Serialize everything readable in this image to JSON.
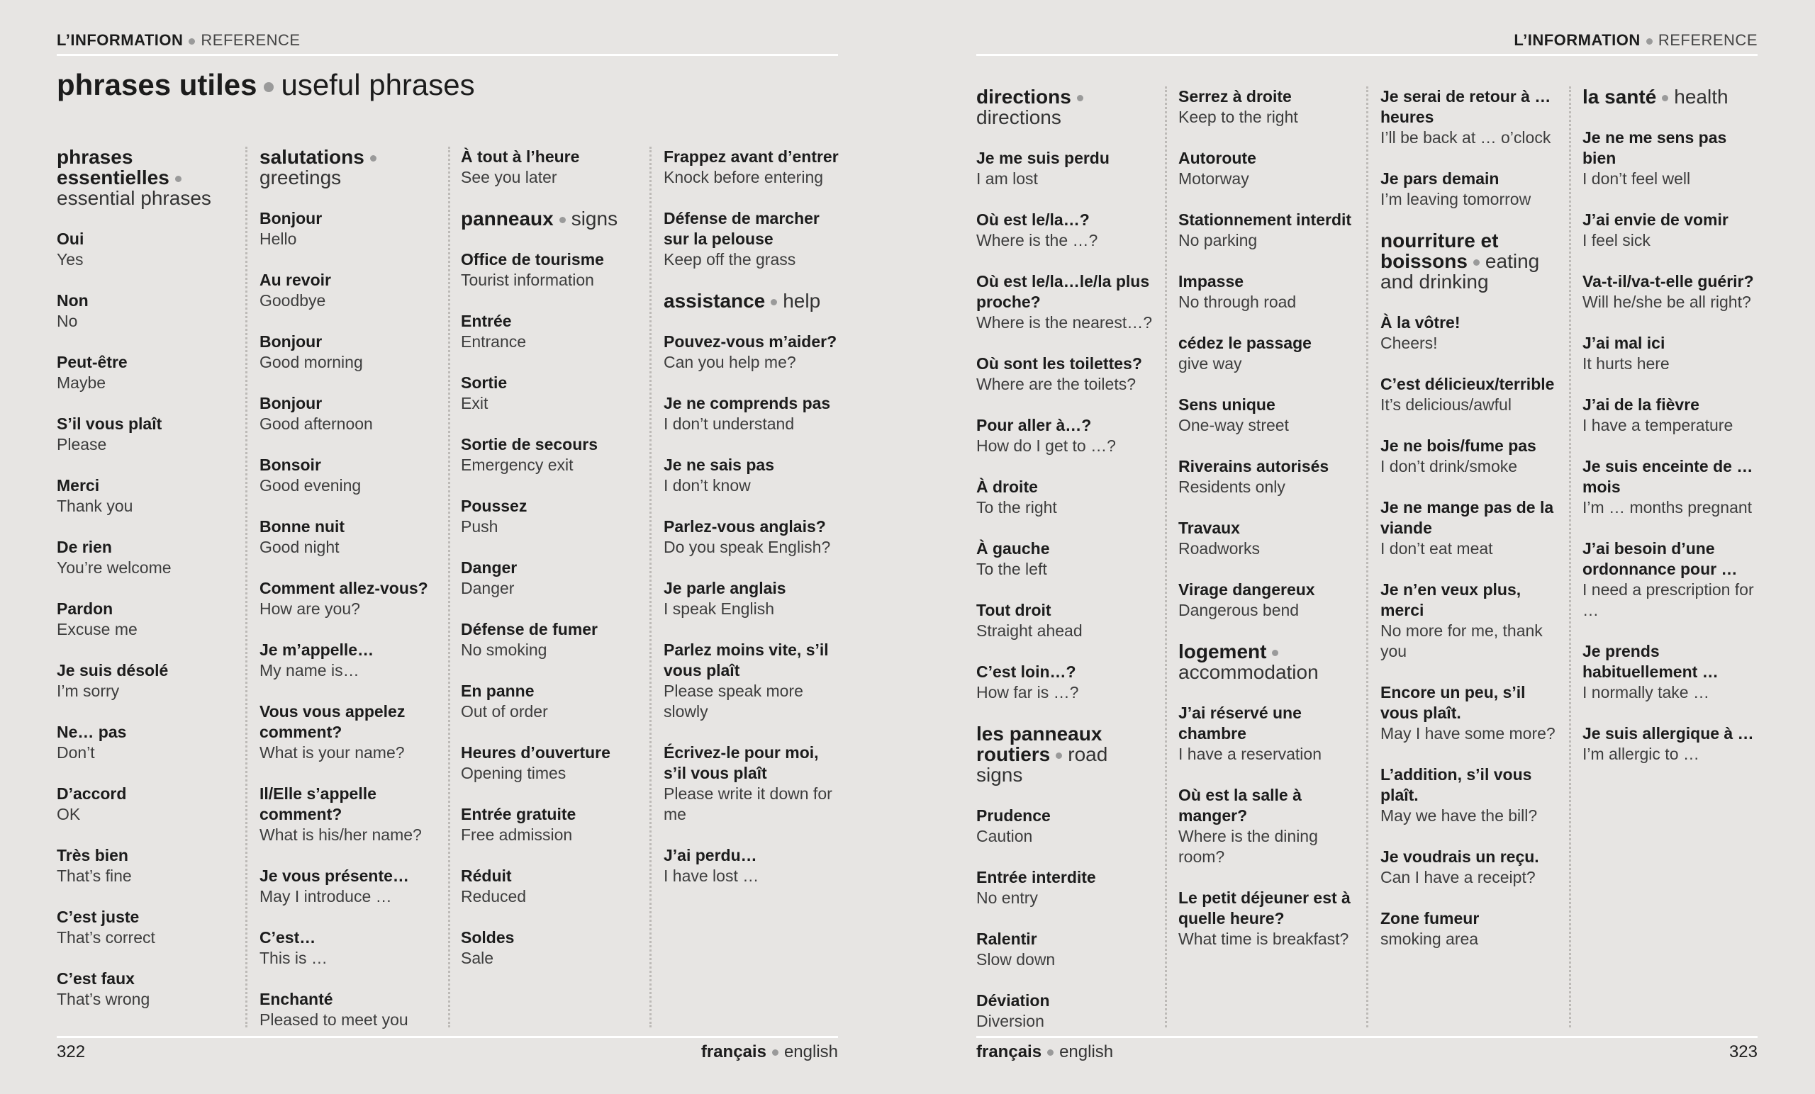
{
  "pages": [
    {
      "header": {
        "section": "L’INFORMATION",
        "subsection": "REFERENCE"
      },
      "title": {
        "french": "phrases utiles",
        "english": "useful phrases"
      },
      "columns": [
        [
          {
            "heading": "phrases essentielles",
            "heading_translation": "essential phrases"
          },
          {
            "phrase": "Oui",
            "translation": "Yes"
          },
          {
            "phrase": "Non",
            "translation": "No"
          },
          {
            "phrase": "Peut-être",
            "translation": "Maybe"
          },
          {
            "phrase": "S’il vous plaît",
            "translation": "Please"
          },
          {
            "phrase": "Merci",
            "translation": "Thank you"
          },
          {
            "phrase": "De rien",
            "translation": "You’re welcome"
          },
          {
            "phrase": "Pardon",
            "translation": "Excuse me"
          },
          {
            "phrase": "Je suis désolé",
            "translation": "I’m sorry"
          },
          {
            "phrase": "Ne… pas",
            "translation": "Don’t"
          },
          {
            "phrase": "D’accord",
            "translation": "OK"
          },
          {
            "phrase": "Très bien",
            "translation": "That’s fine"
          },
          {
            "phrase": "C’est juste",
            "translation": "That’s correct"
          },
          {
            "phrase": "C’est faux",
            "translation": "That’s wrong"
          }
        ],
        [
          {
            "heading": "salutations",
            "heading_translation": "greetings"
          },
          {
            "phrase": "Bonjour",
            "translation": "Hello"
          },
          {
            "phrase": "Au revoir",
            "translation": "Goodbye"
          },
          {
            "phrase": "Bonjour",
            "translation": "Good morning"
          },
          {
            "phrase": "Bonjour",
            "translation": "Good afternoon"
          },
          {
            "phrase": "Bonsoir",
            "translation": "Good evening"
          },
          {
            "phrase": "Bonne nuit",
            "translation": "Good night"
          },
          {
            "phrase": "Comment allez-vous?",
            "translation": "How are you?"
          },
          {
            "phrase": "Je m’appelle…",
            "translation": "My name is…"
          },
          {
            "phrase": "Vous vous appelez comment?",
            "translation": "What is your name?"
          },
          {
            "phrase": "Il/Elle s’appelle comment?",
            "translation": "What is his/her name?"
          },
          {
            "phrase": "Je vous présente…",
            "translation": "May I introduce …"
          },
          {
            "phrase": "C’est…",
            "translation": "This is …"
          },
          {
            "phrase": "Enchanté",
            "translation": "Pleased to meet you"
          }
        ],
        [
          {
            "phrase": "À tout à l’heure",
            "translation": "See you later"
          },
          {
            "heading": "panneaux",
            "heading_translation": "signs"
          },
          {
            "phrase": "Office de tourisme",
            "translation": "Tourist information"
          },
          {
            "phrase": "Entrée",
            "translation": "Entrance"
          },
          {
            "phrase": "Sortie",
            "translation": "Exit"
          },
          {
            "phrase": "Sortie de secours",
            "translation": "Emergency exit"
          },
          {
            "phrase": "Poussez",
            "translation": "Push"
          },
          {
            "phrase": "Danger",
            "translation": "Danger"
          },
          {
            "phrase": "Défense de fumer",
            "translation": "No smoking"
          },
          {
            "phrase": "En panne",
            "translation": "Out of order"
          },
          {
            "phrase": "Heures d’ouverture",
            "translation": "Opening times"
          },
          {
            "phrase": "Entrée gratuite",
            "translation": "Free admission"
          },
          {
            "phrase": "Réduit",
            "translation": "Reduced"
          },
          {
            "phrase": "Soldes",
            "translation": "Sale"
          }
        ],
        [
          {
            "phrase": "Frappez avant d’entrer",
            "translation": "Knock before entering"
          },
          {
            "phrase": "Défense de marcher sur la pelouse",
            "translation": "Keep off the grass"
          },
          {
            "heading": "assistance",
            "heading_translation": "help"
          },
          {
            "phrase": "Pouvez-vous m’aider?",
            "translation": "Can you help me?"
          },
          {
            "phrase": "Je ne comprends pas",
            "translation": "I don’t understand"
          },
          {
            "phrase": "Je ne sais pas",
            "translation": "I don’t know"
          },
          {
            "phrase": "Parlez-vous anglais?",
            "translation": "Do you speak English?"
          },
          {
            "phrase": "Je parle anglais",
            "translation": "I speak English"
          },
          {
            "phrase": "Parlez moins vite, s’il vous plaît",
            "translation": "Please speak more slowly"
          },
          {
            "phrase": "Écrivez-le pour moi, s’il vous plaît",
            "translation": "Please write it down for me"
          },
          {
            "phrase": "J’ai perdu…",
            "translation": "I have lost …"
          }
        ]
      ],
      "footer": {
        "page_number": "322",
        "french": "français",
        "english": "english"
      }
    },
    {
      "header": {
        "section": "L’INFORMATION",
        "subsection": "REFERENCE"
      },
      "columns": [
        [
          {
            "heading": "directions",
            "heading_translation": "directions"
          },
          {
            "phrase": "Je me suis perdu",
            "translation": "I am lost"
          },
          {
            "phrase": "Où est le/la…?",
            "translation": "Where is the …?"
          },
          {
            "phrase": "Où est le/la…le/la plus proche?",
            "translation": "Where is the nearest…?"
          },
          {
            "phrase": "Où sont les toilettes?",
            "translation": "Where are the toilets?"
          },
          {
            "phrase": "Pour aller à…?",
            "translation": "How do I get to …?"
          },
          {
            "phrase": "À droite",
            "translation": "To the right"
          },
          {
            "phrase": "À gauche",
            "translation": "To the left"
          },
          {
            "phrase": "Tout droit",
            "translation": "Straight ahead"
          },
          {
            "phrase": "C’est loin…?",
            "translation": "How far is …?"
          },
          {
            "heading": "les panneaux routiers",
            "heading_translation": "road signs"
          },
          {
            "phrase": "Prudence",
            "translation": "Caution"
          },
          {
            "phrase": "Entrée interdite",
            "translation": "No entry"
          },
          {
            "phrase": "Ralentir",
            "translation": "Slow down"
          },
          {
            "phrase": "Déviation",
            "translation": "Diversion"
          }
        ],
        [
          {
            "phrase": "Serrez à droite",
            "translation": "Keep to the right"
          },
          {
            "phrase": "Autoroute",
            "translation": "Motorway"
          },
          {
            "phrase": "Stationnement interdit",
            "translation": "No parking"
          },
          {
            "phrase": "Impasse",
            "translation": "No through road"
          },
          {
            "phrase": "cédez le passage",
            "translation": "give way"
          },
          {
            "phrase": "Sens unique",
            "translation": "One-way street"
          },
          {
            "phrase": "Riverains autorisés",
            "translation": "Residents only"
          },
          {
            "phrase": "Travaux",
            "translation": "Roadworks"
          },
          {
            "phrase": "Virage dangereux",
            "translation": "Dangerous bend"
          },
          {
            "heading": "logement",
            "heading_translation": "accommodation"
          },
          {
            "phrase": "J’ai réservé une chambre",
            "translation": "I have a reservation"
          },
          {
            "phrase": "Où est la salle à manger?",
            "translation": "Where is the dining room?"
          },
          {
            "phrase": "Le petit déjeuner est à quelle heure?",
            "translation": "What time is breakfast?"
          }
        ],
        [
          {
            "phrase": "Je serai de retour à … heures",
            "translation": "I’ll be back at … o’clock"
          },
          {
            "phrase": "Je pars demain",
            "translation": "I’m leaving tomorrow"
          },
          {
            "heading": "nourriture et boissons",
            "heading_translation": "eating and drinking"
          },
          {
            "phrase": "À la vôtre!",
            "translation": "Cheers!"
          },
          {
            "phrase": "C’est délicieux/terrible",
            "translation": "It’s delicious/awful"
          },
          {
            "phrase": "Je ne bois/fume pas",
            "translation": "I don’t drink/smoke"
          },
          {
            "phrase": "Je ne mange pas de la viande",
            "translation": "I don’t eat meat"
          },
          {
            "phrase": "Je n’en veux plus, merci",
            "translation": "No more for me, thank you"
          },
          {
            "phrase": "Encore un peu, s’il vous plaît.",
            "translation": "May I have some more?"
          },
          {
            "phrase": "L’addition, s’il vous plaît.",
            "translation": "May we have the bill?"
          },
          {
            "phrase": "Je voudrais un reçu.",
            "translation": "Can I have a receipt?"
          },
          {
            "phrase": "Zone fumeur",
            "translation": "smoking area"
          }
        ],
        [
          {
            "heading": "la santé",
            "heading_translation": "health"
          },
          {
            "phrase": "Je ne me sens pas bien",
            "translation": "I don’t feel well"
          },
          {
            "phrase": "J’ai envie de vomir",
            "translation": "I feel sick"
          },
          {
            "phrase": "Va-t-il/va-t-elle guérir?",
            "translation": "Will he/she be all right?"
          },
          {
            "phrase": "J’ai mal ici",
            "translation": "It hurts here"
          },
          {
            "phrase": "J’ai de la fièvre",
            "translation": "I have a temperature"
          },
          {
            "phrase": "Je suis enceinte de …mois",
            "translation": "I’m … months pregnant"
          },
          {
            "phrase": "J’ai besoin d’une ordonnance pour …",
            "translation": "I need a prescription for …"
          },
          {
            "phrase": "Je prends habituellement …",
            "translation": "I normally take …"
          },
          {
            "phrase": "Je suis allergique à …",
            "translation": "I’m allergic to …"
          }
        ]
      ],
      "footer": {
        "page_number": "323",
        "french": "français",
        "english": "english"
      }
    }
  ]
}
